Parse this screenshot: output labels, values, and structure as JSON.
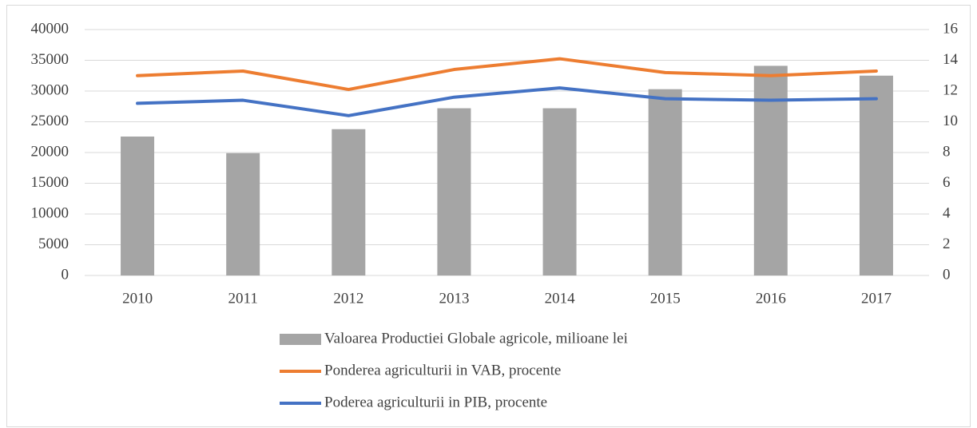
{
  "chart_data": {
    "type": "combo",
    "categories": [
      "2010",
      "2011",
      "2012",
      "2013",
      "2014",
      "2015",
      "2016",
      "2017"
    ],
    "series": [
      {
        "name": "Valoarea Productiei Globale agricole, milioane lei",
        "type": "bar",
        "color": "#a5a5a5",
        "values": [
          22600,
          19900,
          23800,
          27200,
          27200,
          30300,
          34100,
          32500
        ]
      },
      {
        "name": "Ponderea agriculturii in VAB, procente",
        "type": "line",
        "axis": "y2",
        "color": "#ed7d31",
        "values": [
          13.0,
          13.3,
          12.1,
          13.4,
          14.1,
          13.2,
          13.0,
          13.3
        ]
      },
      {
        "name": "Poderea agriculturii in PIB, procente",
        "type": "line",
        "axis": "y2",
        "color": "#4472c4",
        "values": [
          11.2,
          11.4,
          10.4,
          11.6,
          12.2,
          11.5,
          11.4,
          11.5
        ]
      }
    ],
    "ylim": [
      0,
      40000
    ],
    "yticks": [
      0,
      5000,
      10000,
      15000,
      20000,
      25000,
      30000,
      35000,
      40000
    ],
    "y2lim": [
      0,
      16
    ],
    "y2ticks": [
      0,
      2,
      4,
      6,
      8,
      10,
      12,
      14,
      16
    ],
    "grid": true,
    "legend": "bottom"
  }
}
